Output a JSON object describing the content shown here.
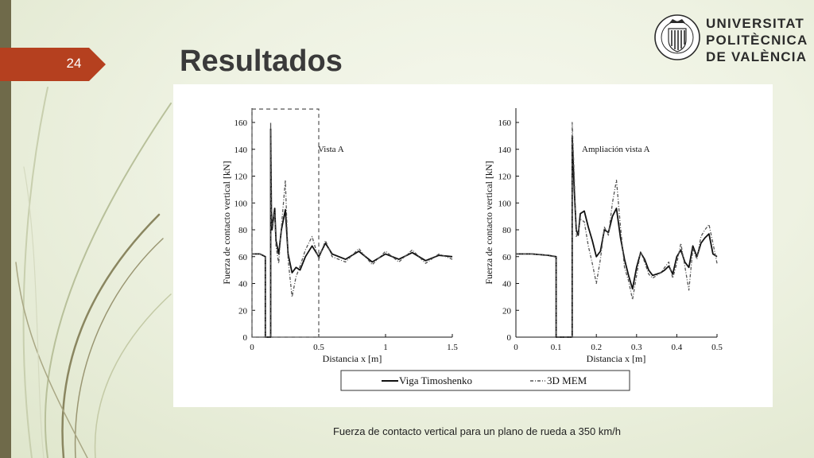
{
  "slide": {
    "number": "24",
    "title": "Resultados",
    "caption": "Fuerza de contacto vertical para un plano de rueda a 350 km/h"
  },
  "logo": {
    "lines": [
      "UNIVERSITAT",
      "POLITÈCNICA",
      "DE VALÈNCIA"
    ],
    "seal_text": "UNIVERSITAT POLITÈCNICA DE VALÈNCIA"
  },
  "colors": {
    "accent_tab": "#b5401f",
    "strip": "#6f6a4a",
    "ink": "#111111"
  },
  "legend": {
    "items": [
      "Viga Timoshenko",
      "3D MEM"
    ]
  },
  "chart_data": [
    {
      "type": "line",
      "annotation": "Vista A",
      "xlabel": "Distancia x [m]",
      "ylabel": "Fuerza de contacto vertical [kN]",
      "xlim": [
        0,
        1.5
      ],
      "ylim": [
        0,
        160
      ],
      "xticks": [
        "0",
        "0.5",
        "1",
        "1.5"
      ],
      "yticks": [
        "0",
        "20",
        "40",
        "60",
        "80",
        "100",
        "120",
        "140",
        "160"
      ],
      "highlight_box": {
        "x": [
          0,
          0.5
        ],
        "y": [
          0,
          170
        ],
        "style": "dashed"
      },
      "series": [
        {
          "name": "Viga Timoshenko",
          "style": "solid",
          "x": [
            0,
            0.06,
            0.08,
            0.1,
            0.1,
            0.14,
            0.14,
            0.145,
            0.15,
            0.16,
            0.17,
            0.18,
            0.2,
            0.22,
            0.25,
            0.27,
            0.3,
            0.33,
            0.36,
            0.4,
            0.45,
            0.5,
            0.55,
            0.6,
            0.7,
            0.8,
            0.9,
            1.0,
            1.1,
            1.2,
            1.3,
            1.4,
            1.5
          ],
          "values": [
            62,
            62,
            61,
            60,
            0,
            0,
            155,
            95,
            80,
            88,
            96,
            72,
            62,
            80,
            95,
            62,
            48,
            52,
            50,
            60,
            68,
            60,
            70,
            62,
            58,
            64,
            56,
            62,
            58,
            63,
            57,
            61,
            60
          ]
        },
        {
          "name": "3D MEM",
          "style": "dashed",
          "x": [
            0,
            0.06,
            0.08,
            0.1,
            0.1,
            0.14,
            0.14,
            0.145,
            0.15,
            0.16,
            0.17,
            0.18,
            0.2,
            0.22,
            0.25,
            0.27,
            0.3,
            0.33,
            0.36,
            0.4,
            0.45,
            0.5,
            0.55,
            0.6,
            0.7,
            0.8,
            0.9,
            1.0,
            1.1,
            1.2,
            1.3,
            1.4,
            1.5
          ],
          "values": [
            62,
            62,
            61,
            60,
            0,
            0,
            160,
            92,
            82,
            86,
            93,
            68,
            55,
            82,
            117,
            58,
            30,
            45,
            53,
            65,
            75,
            58,
            72,
            60,
            56,
            66,
            54,
            64,
            56,
            65,
            55,
            62,
            58
          ]
        }
      ]
    },
    {
      "type": "line",
      "annotation": "Ampliación vista A",
      "xlabel": "Distancia x [m]",
      "ylabel": "Fuerza de contacto vertical [kN]",
      "xlim": [
        0,
        0.5
      ],
      "ylim": [
        0,
        160
      ],
      "xticks": [
        "0",
        "0.1",
        "0.2",
        "0.3",
        "0.4",
        "0.5"
      ],
      "yticks": [
        "0",
        "20",
        "40",
        "60",
        "80",
        "100",
        "120",
        "140",
        "160"
      ],
      "series": [
        {
          "name": "Viga Timoshenko",
          "style": "solid",
          "x": [
            0,
            0.04,
            0.08,
            0.1,
            0.1,
            0.14,
            0.14,
            0.145,
            0.15,
            0.155,
            0.16,
            0.17,
            0.18,
            0.19,
            0.2,
            0.21,
            0.22,
            0.23,
            0.24,
            0.25,
            0.26,
            0.27,
            0.28,
            0.29,
            0.3,
            0.31,
            0.32,
            0.33,
            0.34,
            0.35,
            0.36,
            0.37,
            0.38,
            0.39,
            0.4,
            0.41,
            0.42,
            0.43,
            0.44,
            0.45,
            0.46,
            0.47,
            0.48,
            0.49,
            0.5
          ],
          "values": [
            62,
            62,
            61,
            60,
            0,
            0,
            150,
            110,
            80,
            76,
            92,
            94,
            82,
            72,
            60,
            64,
            80,
            78,
            90,
            96,
            74,
            58,
            46,
            36,
            52,
            63,
            58,
            50,
            46,
            47,
            48,
            50,
            53,
            47,
            60,
            65,
            56,
            52,
            68,
            60,
            70,
            74,
            77,
            62,
            60
          ]
        },
        {
          "name": "3D MEM",
          "style": "dashed",
          "x": [
            0,
            0.04,
            0.08,
            0.1,
            0.1,
            0.14,
            0.14,
            0.145,
            0.15,
            0.155,
            0.16,
            0.17,
            0.18,
            0.19,
            0.2,
            0.21,
            0.22,
            0.23,
            0.24,
            0.25,
            0.26,
            0.27,
            0.28,
            0.29,
            0.3,
            0.31,
            0.32,
            0.33,
            0.34,
            0.35,
            0.36,
            0.37,
            0.38,
            0.39,
            0.4,
            0.41,
            0.42,
            0.43,
            0.44,
            0.45,
            0.46,
            0.47,
            0.48,
            0.49,
            0.5
          ],
          "values": [
            62,
            62,
            61,
            60,
            0,
            0,
            160,
            120,
            75,
            78,
            88,
            86,
            68,
            55,
            40,
            58,
            82,
            76,
            100,
            117,
            82,
            52,
            42,
            28,
            46,
            64,
            56,
            47,
            44,
            46,
            48,
            52,
            56,
            44,
            55,
            70,
            53,
            35,
            66,
            58,
            75,
            80,
            84,
            70,
            55
          ]
        }
      ]
    }
  ]
}
